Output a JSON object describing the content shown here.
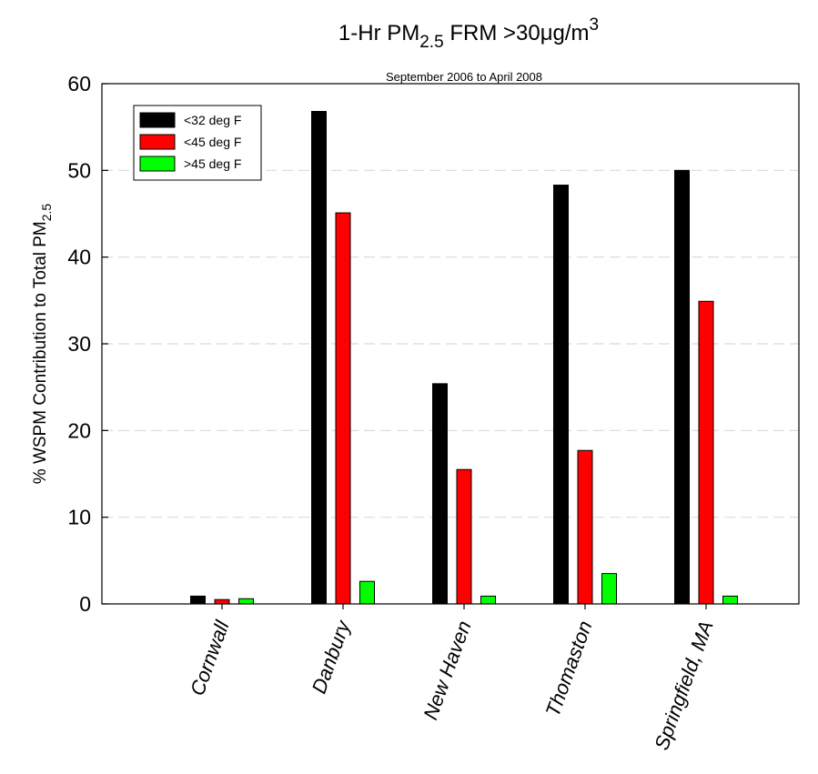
{
  "chart_data": {
    "type": "bar",
    "title": {
      "prefix": "1-Hr PM",
      "subscript": "2.5",
      "middle": " FRM >30",
      "unit_symbol": "μg/m",
      "superscript": "3"
    },
    "subtitle": "September 2006 to April 2008",
    "xlabel": "",
    "ylabel": {
      "text": "% WSPM Contribution to Total PM",
      "subscript": "2.5"
    },
    "ylim": [
      0,
      60
    ],
    "yticks": [
      0,
      10,
      20,
      30,
      40,
      50,
      60
    ],
    "grid": "horizontal-dashed",
    "legend_position": "top-left",
    "categories": [
      "Cornwall",
      "Danbury",
      "New Haven",
      "Thomaston",
      "Springfield, MA"
    ],
    "series": [
      {
        "name": "<32 deg F",
        "color": "#000000",
        "values": [
          0.9,
          56.8,
          25.4,
          48.3,
          50.0
        ]
      },
      {
        "name": "<45 deg F",
        "color": "#ff0000",
        "values": [
          0.5,
          45.1,
          15.5,
          17.7,
          34.9
        ]
      },
      {
        "name": ">45 deg F",
        "color": "#00ff00",
        "values": [
          0.6,
          2.6,
          0.9,
          3.5,
          0.9
        ]
      }
    ]
  }
}
